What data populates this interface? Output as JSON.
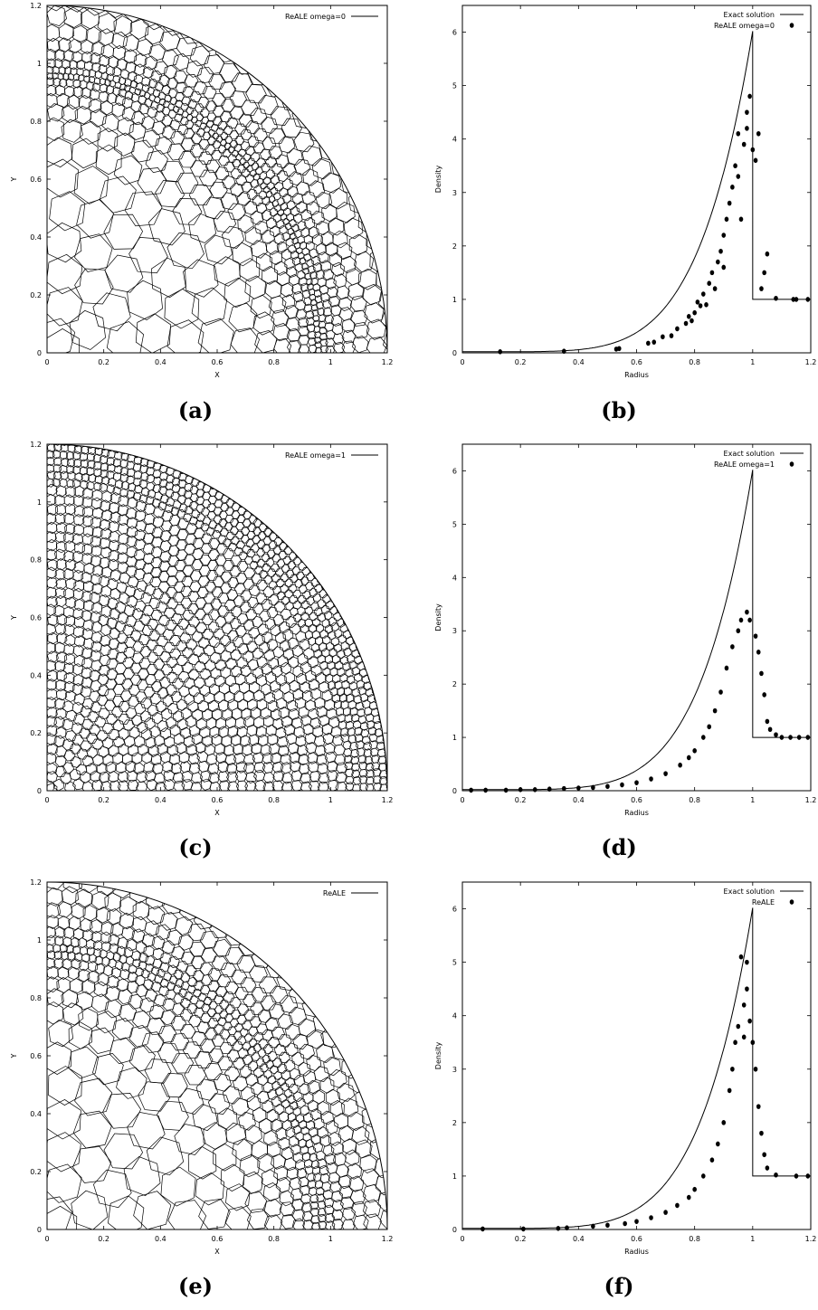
{
  "figure": {
    "panels": [
      {
        "id": "a",
        "caption": "(a)"
      },
      {
        "id": "b",
        "caption": "(b)"
      },
      {
        "id": "c",
        "caption": "(c)"
      },
      {
        "id": "d",
        "caption": "(d)"
      },
      {
        "id": "e",
        "caption": "(e)"
      },
      {
        "id": "f",
        "caption": "(f)"
      }
    ]
  },
  "chart_data": [
    {
      "panel": "a",
      "type": "mesh",
      "xlabel": "X",
      "ylabel": "Y",
      "xlim": [
        0,
        1.2
      ],
      "ylim": [
        0,
        1.2
      ],
      "xticks": [
        "0",
        "0.2",
        "0.4",
        "0.6",
        "0.8",
        "1",
        "1.2"
      ],
      "yticks": [
        "0",
        "0.2",
        "0.4",
        "0.6",
        "0.8",
        "1",
        "1.2"
      ],
      "legend": "ReALE omega=0",
      "legend_position": "top-right",
      "domain_radius": 1.2
    },
    {
      "panel": "b",
      "type": "scatter",
      "xlabel": "Radius",
      "ylabel": "Density",
      "xlim": [
        0,
        1.2
      ],
      "ylim": [
        0,
        6.5
      ],
      "xticks": [
        "0",
        "0.2",
        "0.4",
        "0.6",
        "0.8",
        "1",
        "1.2"
      ],
      "yticks": [
        "0",
        "1",
        "2",
        "3",
        "4",
        "5",
        "6"
      ],
      "legend_position": "top-right",
      "series": [
        {
          "name": "Exact solution",
          "style": "line"
        },
        {
          "name": "ReALE omega=0",
          "style": "points",
          "points": [
            [
              0.13,
              0.02
            ],
            [
              0.35,
              0.03
            ],
            [
              0.53,
              0.07
            ],
            [
              0.54,
              0.08
            ],
            [
              0.64,
              0.18
            ],
            [
              0.66,
              0.2
            ],
            [
              0.69,
              0.3
            ],
            [
              0.72,
              0.32
            ],
            [
              0.74,
              0.45
            ],
            [
              0.77,
              0.55
            ],
            [
              0.78,
              0.68
            ],
            [
              0.79,
              0.6
            ],
            [
              0.8,
              0.75
            ],
            [
              0.81,
              0.95
            ],
            [
              0.82,
              0.88
            ],
            [
              0.83,
              1.1
            ],
            [
              0.84,
              0.9
            ],
            [
              0.85,
              1.3
            ],
            [
              0.86,
              1.5
            ],
            [
              0.87,
              1.2
            ],
            [
              0.88,
              1.7
            ],
            [
              0.89,
              1.9
            ],
            [
              0.9,
              1.6
            ],
            [
              0.9,
              2.2
            ],
            [
              0.91,
              2.5
            ],
            [
              0.92,
              2.8
            ],
            [
              0.93,
              3.1
            ],
            [
              0.94,
              3.5
            ],
            [
              0.95,
              3.3
            ],
            [
              0.95,
              4.1
            ],
            [
              0.96,
              2.5
            ],
            [
              0.97,
              3.9
            ],
            [
              0.98,
              4.5
            ],
            [
              0.98,
              4.2
            ],
            [
              0.99,
              4.8
            ],
            [
              1.0,
              3.8
            ],
            [
              1.01,
              3.6
            ],
            [
              1.02,
              4.1
            ],
            [
              1.03,
              1.2
            ],
            [
              1.04,
              1.5
            ],
            [
              1.05,
              1.85
            ],
            [
              1.08,
              1.02
            ],
            [
              1.14,
              1.0
            ],
            [
              1.15,
              1.0
            ],
            [
              1.19,
              1.0
            ]
          ]
        }
      ]
    },
    {
      "panel": "c",
      "type": "mesh",
      "xlabel": "X",
      "ylabel": "Y",
      "xlim": [
        0,
        1.2
      ],
      "ylim": [
        0,
        1.2
      ],
      "xticks": [
        "0",
        "0.2",
        "0.4",
        "0.6",
        "0.8",
        "1",
        "1.2"
      ],
      "yticks": [
        "0",
        "0.2",
        "0.4",
        "0.6",
        "0.8",
        "1",
        "1.2"
      ],
      "legend": "ReALE omega=1",
      "legend_position": "top-right",
      "domain_radius": 1.2
    },
    {
      "panel": "d",
      "type": "scatter",
      "xlabel": "Radius",
      "ylabel": "Density",
      "xlim": [
        0,
        1.2
      ],
      "ylim": [
        0,
        6.5
      ],
      "xticks": [
        "0",
        "0.2",
        "0.4",
        "0.6",
        "0.8",
        "1",
        "1.2"
      ],
      "yticks": [
        "0",
        "1",
        "2",
        "3",
        "4",
        "5",
        "6"
      ],
      "legend_position": "top-right",
      "series": [
        {
          "name": "Exact solution",
          "style": "line"
        },
        {
          "name": "ReALE omega=1",
          "style": "points",
          "points": [
            [
              0.03,
              0.01
            ],
            [
              0.08,
              0.01
            ],
            [
              0.15,
              0.01
            ],
            [
              0.2,
              0.02
            ],
            [
              0.25,
              0.02
            ],
            [
              0.3,
              0.03
            ],
            [
              0.35,
              0.04
            ],
            [
              0.4,
              0.05
            ],
            [
              0.45,
              0.06
            ],
            [
              0.5,
              0.08
            ],
            [
              0.55,
              0.11
            ],
            [
              0.6,
              0.15
            ],
            [
              0.65,
              0.22
            ],
            [
              0.7,
              0.32
            ],
            [
              0.75,
              0.48
            ],
            [
              0.78,
              0.62
            ],
            [
              0.8,
              0.75
            ],
            [
              0.83,
              1.0
            ],
            [
              0.85,
              1.2
            ],
            [
              0.87,
              1.5
            ],
            [
              0.89,
              1.85
            ],
            [
              0.91,
              2.3
            ],
            [
              0.93,
              2.7
            ],
            [
              0.95,
              3.0
            ],
            [
              0.96,
              3.2
            ],
            [
              0.98,
              3.35
            ],
            [
              0.99,
              3.2
            ],
            [
              1.01,
              2.9
            ],
            [
              1.02,
              2.6
            ],
            [
              1.03,
              2.2
            ],
            [
              1.04,
              1.8
            ],
            [
              1.05,
              1.3
            ],
            [
              1.06,
              1.15
            ],
            [
              1.08,
              1.05
            ],
            [
              1.1,
              1.0
            ],
            [
              1.13,
              1.0
            ],
            [
              1.16,
              1.0
            ],
            [
              1.19,
              1.0
            ]
          ]
        }
      ]
    },
    {
      "panel": "e",
      "type": "mesh",
      "xlabel": "X",
      "ylabel": "Y",
      "xlim": [
        0,
        1.2
      ],
      "ylim": [
        0,
        1.2
      ],
      "xticks": [
        "0",
        "0.2",
        "0.4",
        "0.6",
        "0.8",
        "1",
        "1.2"
      ],
      "yticks": [
        "0",
        "0.2",
        "0.4",
        "0.6",
        "0.8",
        "1",
        "1.2"
      ],
      "legend": "ReALE",
      "legend_position": "top-right",
      "domain_radius": 1.2
    },
    {
      "panel": "f",
      "type": "scatter",
      "xlabel": "Radius",
      "ylabel": "Density",
      "xlim": [
        0,
        1.2
      ],
      "ylim": [
        0,
        6.5
      ],
      "xticks": [
        "0",
        "0.2",
        "0.4",
        "0.6",
        "0.8",
        "1",
        "1.2"
      ],
      "yticks": [
        "0",
        "1",
        "2",
        "3",
        "4",
        "5",
        "6"
      ],
      "legend_position": "top-right",
      "series": [
        {
          "name": "Exact solution",
          "style": "line"
        },
        {
          "name": "ReALE",
          "style": "points",
          "points": [
            [
              0.07,
              0.01
            ],
            [
              0.21,
              0.01
            ],
            [
              0.33,
              0.02
            ],
            [
              0.36,
              0.03
            ],
            [
              0.45,
              0.06
            ],
            [
              0.5,
              0.08
            ],
            [
              0.56,
              0.11
            ],
            [
              0.6,
              0.15
            ],
            [
              0.65,
              0.22
            ],
            [
              0.7,
              0.32
            ],
            [
              0.74,
              0.45
            ],
            [
              0.78,
              0.6
            ],
            [
              0.8,
              0.75
            ],
            [
              0.83,
              1.0
            ],
            [
              0.86,
              1.3
            ],
            [
              0.88,
              1.6
            ],
            [
              0.9,
              2.0
            ],
            [
              0.92,
              2.6
            ],
            [
              0.93,
              3.0
            ],
            [
              0.94,
              3.5
            ],
            [
              0.95,
              3.8
            ],
            [
              0.96,
              5.1
            ],
            [
              0.97,
              4.2
            ],
            [
              0.97,
              3.6
            ],
            [
              0.98,
              4.5
            ],
            [
              0.98,
              5.0
            ],
            [
              0.99,
              3.9
            ],
            [
              1.0,
              3.5
            ],
            [
              1.01,
              3.0
            ],
            [
              1.02,
              2.3
            ],
            [
              1.03,
              1.8
            ],
            [
              1.04,
              1.4
            ],
            [
              1.05,
              1.15
            ],
            [
              1.08,
              1.02
            ],
            [
              1.15,
              1.0
            ],
            [
              1.19,
              1.0
            ]
          ]
        }
      ]
    }
  ]
}
